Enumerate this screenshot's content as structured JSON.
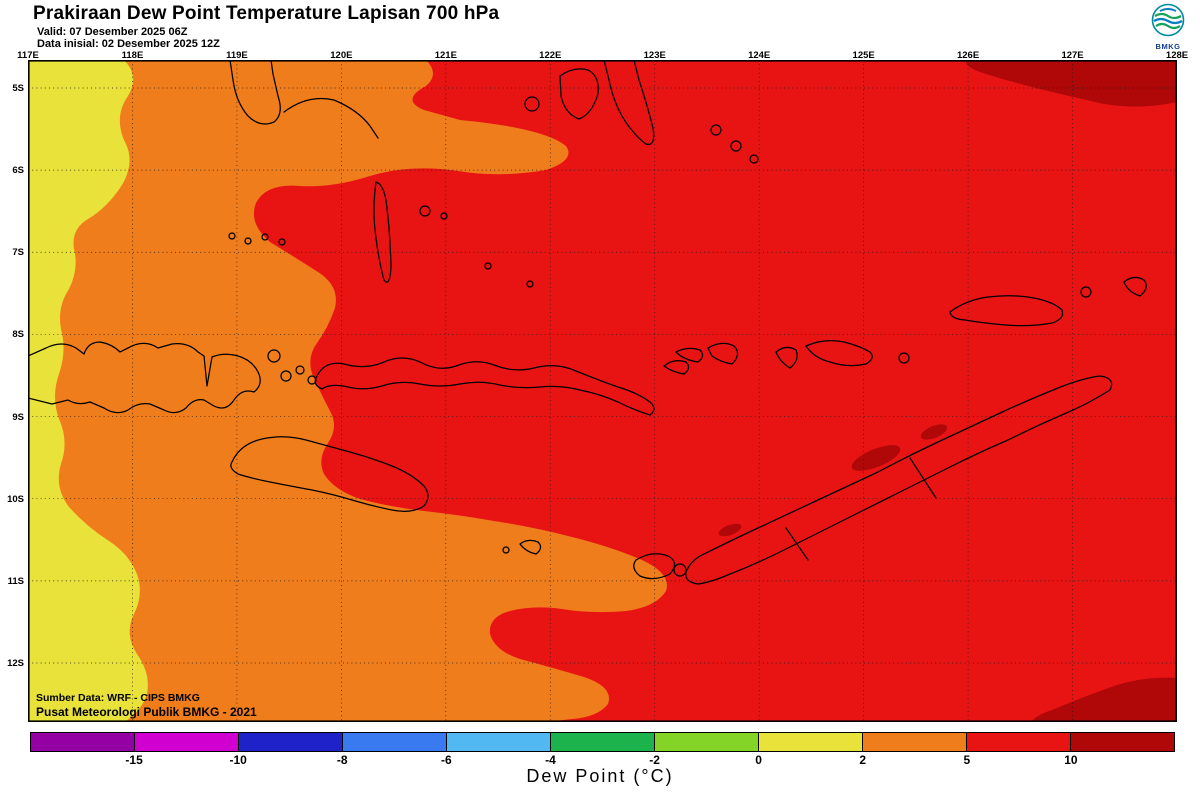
{
  "header": {
    "title": "Prakiraan Dew Point Temperature Lapisan 700 hPa",
    "valid_label": "Valid: 07 Desember 2025 06Z",
    "init_label": "Data inisial: 02 Desember 2025 12Z",
    "logo_label": "BMKG"
  },
  "map": {
    "lon_labels": [
      "117E",
      "118E",
      "119E",
      "120E",
      "121E",
      "122E",
      "123E",
      "124E",
      "125E",
      "126E",
      "127E",
      "128E"
    ],
    "lat_labels": [
      "5S",
      "6S",
      "7S",
      "8S",
      "9S",
      "10S",
      "11S",
      "12S"
    ],
    "source_line1": "Sumber Data: WRF - CIPS BMKG",
    "source_line2": "Pusat Meteorologi Publik BMKG - 2021",
    "region_colors": {
      "red": "#e81414",
      "orange": "#f07d1c",
      "yellow": "#e8e23a",
      "dark_red": "#b00808"
    }
  },
  "colorbar": {
    "caption": "Dew Point (°C)",
    "units": "°C",
    "tick_labels": [
      "-15",
      "-10",
      "-8",
      "-6",
      "-4",
      "-2",
      "0",
      "2",
      "5",
      "10"
    ],
    "colors": [
      "#9400a4",
      "#d000d0",
      "#1e22c8",
      "#3a7af0",
      "#52b8f2",
      "#1cb24c",
      "#84d428",
      "#e8e23a",
      "#f07d1c",
      "#e81414",
      "#b00808"
    ]
  }
}
